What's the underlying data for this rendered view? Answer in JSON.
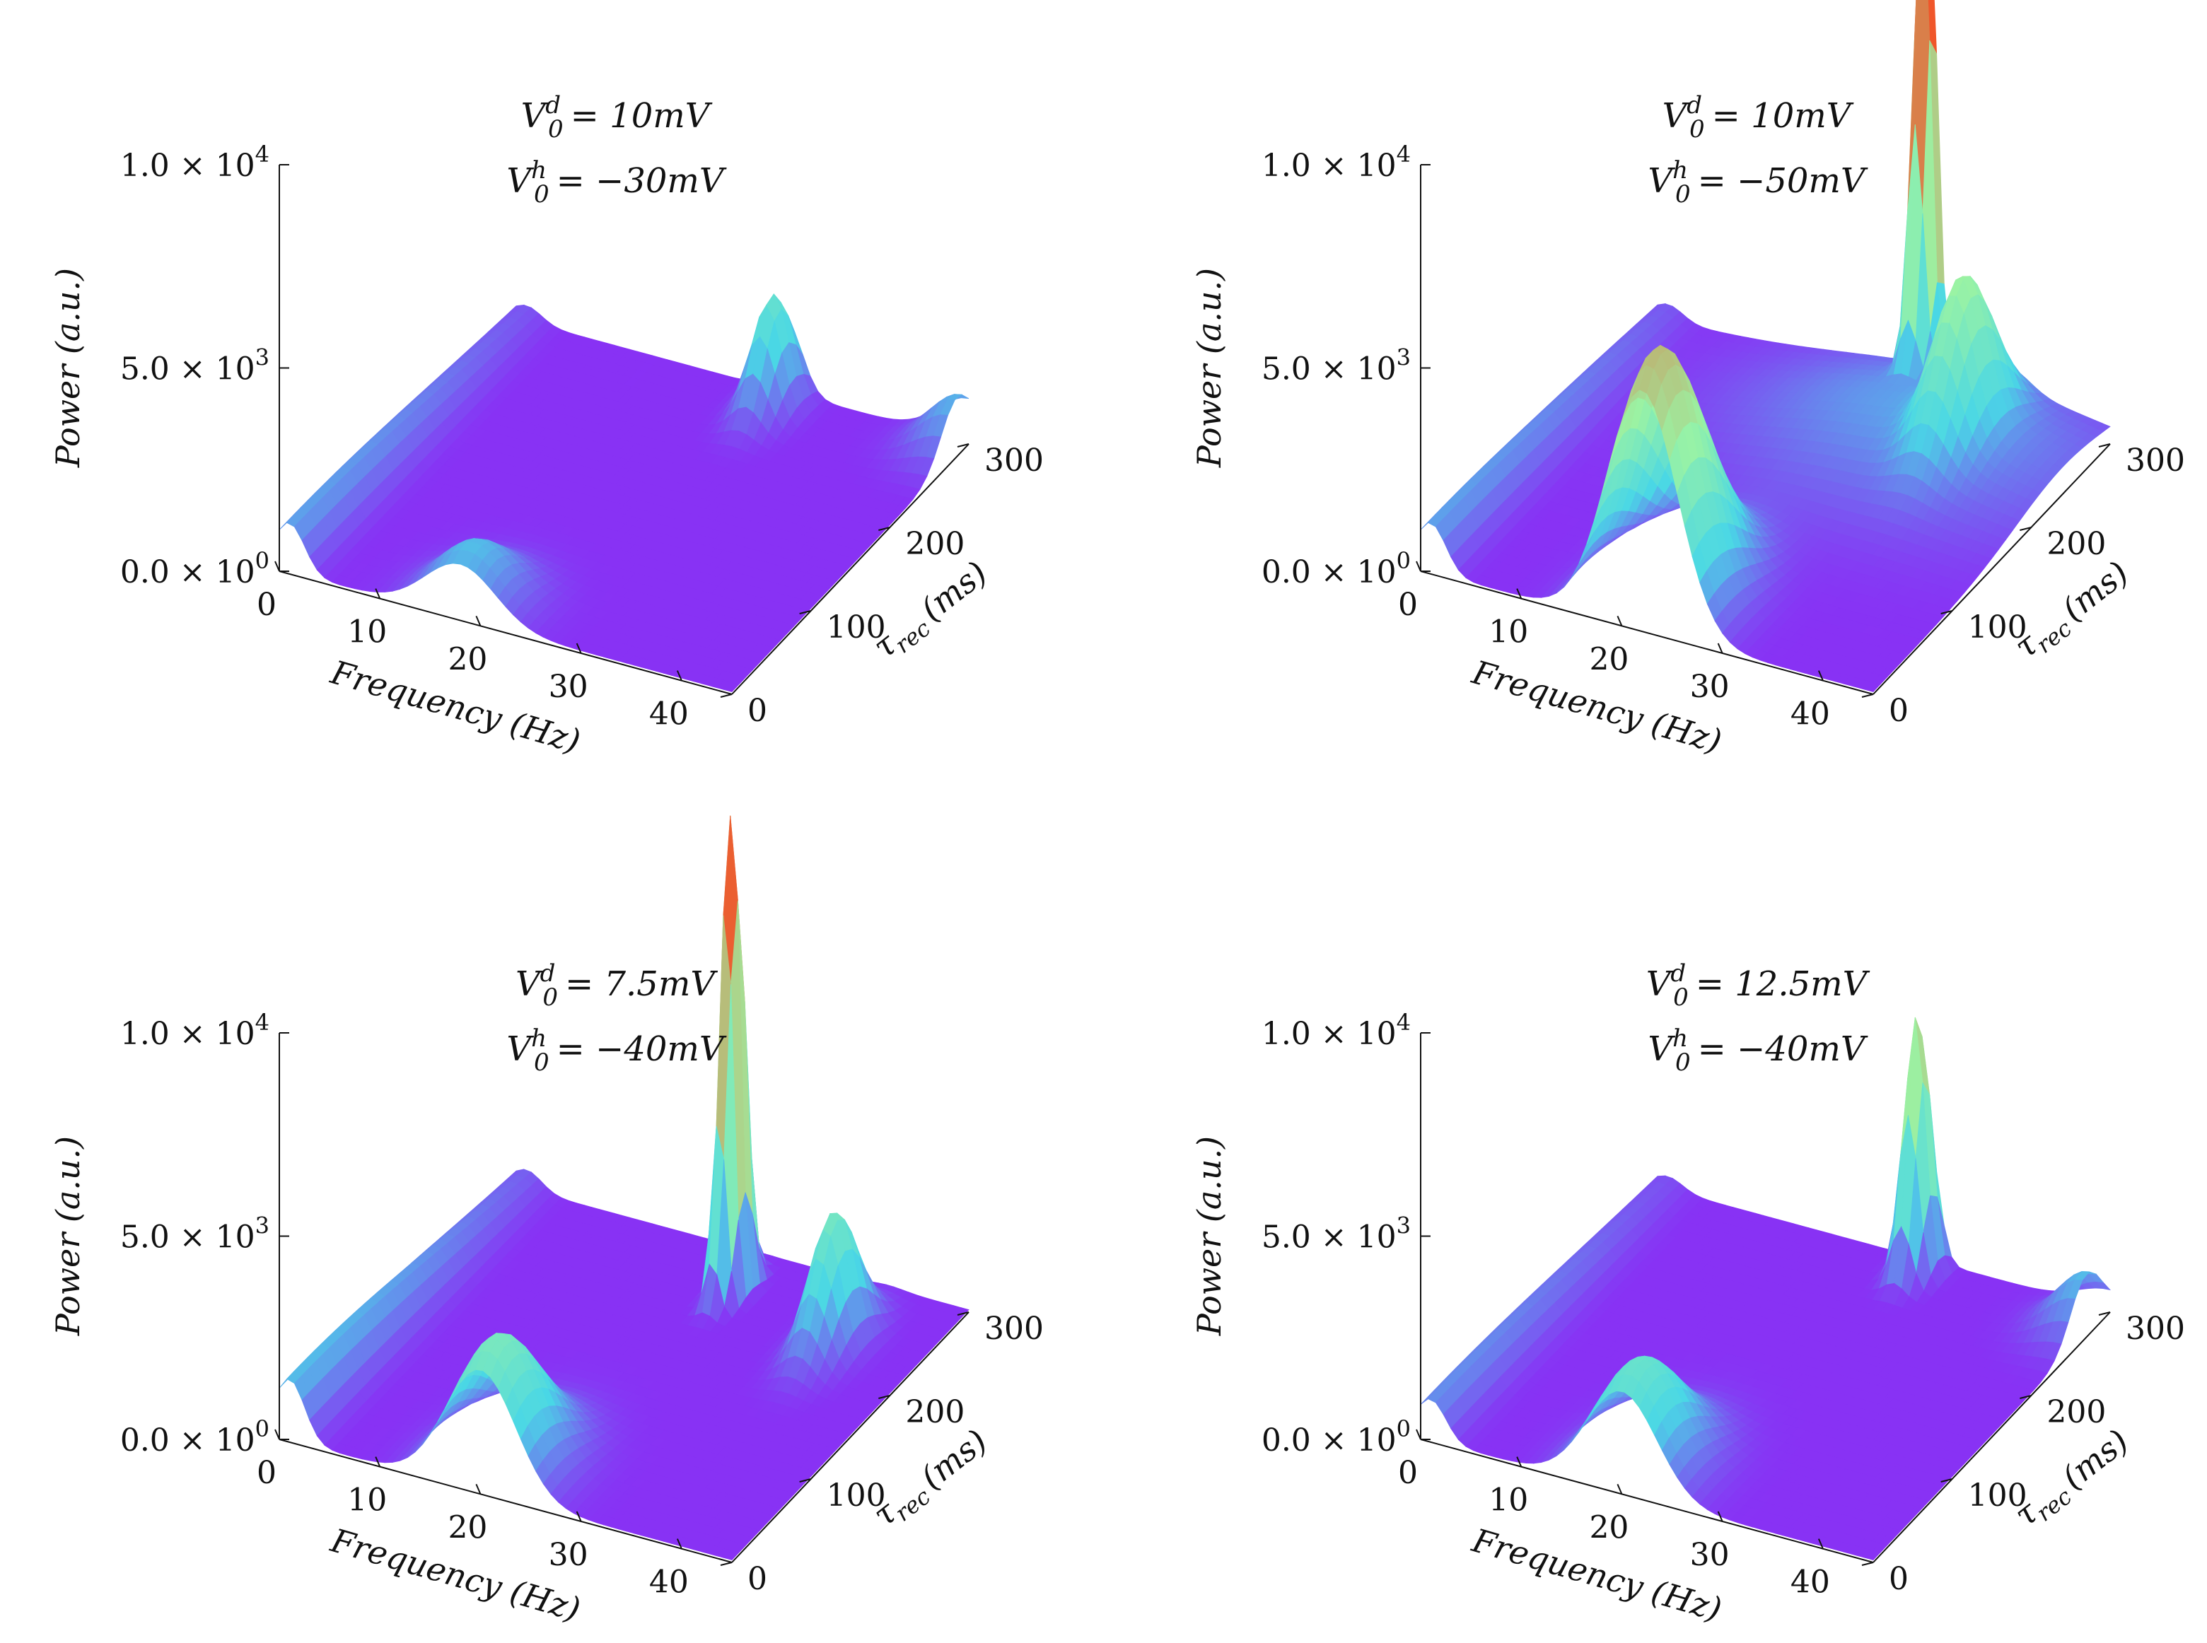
{
  "colors": {
    "low": "#8a2cf5",
    "mid": "#49d7e6",
    "midhigh": "#9af3a4",
    "high": "#f0562a"
  },
  "chart_data": [
    {
      "type": "surface",
      "title_lines": [
        "V_0^d = 10mV",
        "V_0^h = −30mV"
      ],
      "xlabel": "Frequency (Hz)",
      "ylabel": "τ_rec (ms)",
      "zlabel": "Power (a.u.)",
      "x_ticks": [
        "0",
        "10",
        "20",
        "30",
        "40"
      ],
      "y_ticks": [
        "0",
        "100",
        "200",
        "300"
      ],
      "z_ticks": [
        "0.0 × 10^0",
        "5.0 × 10^3",
        "1.0 × 10^4"
      ],
      "xlim": [
        0,
        45
      ],
      "ylim": [
        0,
        300
      ],
      "zlim": [
        0,
        10000
      ],
      "peaks": [
        {
          "freq": 1,
          "tau": 0,
          "power": 1200,
          "spread_f": 1.5,
          "spread_t": 200
        },
        {
          "freq": 18,
          "tau": 15,
          "power": 1500,
          "spread_f": 3.5,
          "spread_t": 30
        },
        {
          "freq": 27,
          "tau": 280,
          "power": 2800,
          "spread_f": 1.5,
          "spread_t": 20
        },
        {
          "freq": 45,
          "tau": 285,
          "power": 1400,
          "spread_f": 3,
          "spread_t": 20
        }
      ]
    },
    {
      "type": "surface",
      "title_lines": [
        "V_0^d = 10mV",
        "V_0^h = −50mV"
      ],
      "xlabel": "Frequency (Hz)",
      "ylabel": "τ_rec (ms)",
      "zlabel": "Power (a.u.)",
      "x_ticks": [
        "0",
        "10",
        "20",
        "30",
        "40"
      ],
      "y_ticks": [
        "0",
        "100",
        "200",
        "300"
      ],
      "z_ticks": [
        "0.0 × 10^0",
        "5.0 × 10^3",
        "1.0 × 10^4"
      ],
      "xlim": [
        0,
        45
      ],
      "ylim": [
        0,
        300
      ],
      "zlim": [
        0,
        10000
      ],
      "peaks": [
        {
          "freq": 1,
          "tau": 0,
          "power": 1200,
          "spread_f": 1.5,
          "spread_t": 200
        },
        {
          "freq": 22,
          "tau": 20,
          "power": 6500,
          "spread_f": 3.5,
          "spread_t": 45
        },
        {
          "freq": 35,
          "tau": 240,
          "power": 3500,
          "spread_f": 2,
          "spread_t": 30
        },
        {
          "freq": 31,
          "tau": 240,
          "power": 1200,
          "spread_f": 12,
          "spread_t": 60
        },
        {
          "freq": 27,
          "tau": 295,
          "power": 13500,
          "spread_f": 0.8,
          "spread_t": 10
        }
      ]
    },
    {
      "type": "surface",
      "title_lines": [
        "V_0^d = 7.5mV",
        "V_0^h = −40mV"
      ],
      "xlabel": "Frequency (Hz)",
      "ylabel": "τ_rec (ms)",
      "zlabel": "Power (a.u.)",
      "x_ticks": [
        "0",
        "10",
        "20",
        "30",
        "40"
      ],
      "y_ticks": [
        "0",
        "100",
        "200",
        "300"
      ],
      "z_ticks": [
        "0.0 × 10^0",
        "5.0 × 10^3",
        "1.0 × 10^4"
      ],
      "xlim": [
        0,
        45
      ],
      "ylim": [
        0,
        300
      ],
      "zlim": [
        0,
        10000
      ],
      "peaks": [
        {
          "freq": 1,
          "tau": 0,
          "power": 1500,
          "spread_f": 1.5,
          "spread_t": 200
        },
        {
          "freq": 20,
          "tau": 20,
          "power": 3400,
          "spread_f": 3.5,
          "spread_t": 40
        },
        {
          "freq": 37,
          "tau": 230,
          "power": 3300,
          "spread_f": 1.6,
          "spread_t": 25
        },
        {
          "freq": 25,
          "tau": 255,
          "power": 12500,
          "spread_f": 0.7,
          "spread_t": 12
        }
      ]
    },
    {
      "type": "surface",
      "title_lines": [
        "V_0^d = 12.5mV",
        "V_0^h = −40mV"
      ],
      "xlabel": "Frequency (Hz)",
      "ylabel": "τ_rec (ms)",
      "zlabel": "Power (a.u.)",
      "x_ticks": [
        "0",
        "10",
        "20",
        "30",
        "40"
      ],
      "y_ticks": [
        "0",
        "100",
        "200",
        "300"
      ],
      "z_ticks": [
        "0.0 × 10^0",
        "5.0 × 10^3",
        "1.0 × 10^4"
      ],
      "xlim": [
        0,
        45
      ],
      "ylim": [
        0,
        300
      ],
      "zlim": [
        0,
        10000
      ],
      "peaks": [
        {
          "freq": 1,
          "tau": 0,
          "power": 1000,
          "spread_f": 1.5,
          "spread_t": 200
        },
        {
          "freq": 20,
          "tau": 20,
          "power": 2800,
          "spread_f": 3.5,
          "spread_t": 40
        },
        {
          "freq": 45,
          "tau": 270,
          "power": 1500,
          "spread_f": 3,
          "spread_t": 20
        },
        {
          "freq": 27,
          "tau": 285,
          "power": 6500,
          "spread_f": 1,
          "spread_t": 12
        }
      ]
    }
  ]
}
